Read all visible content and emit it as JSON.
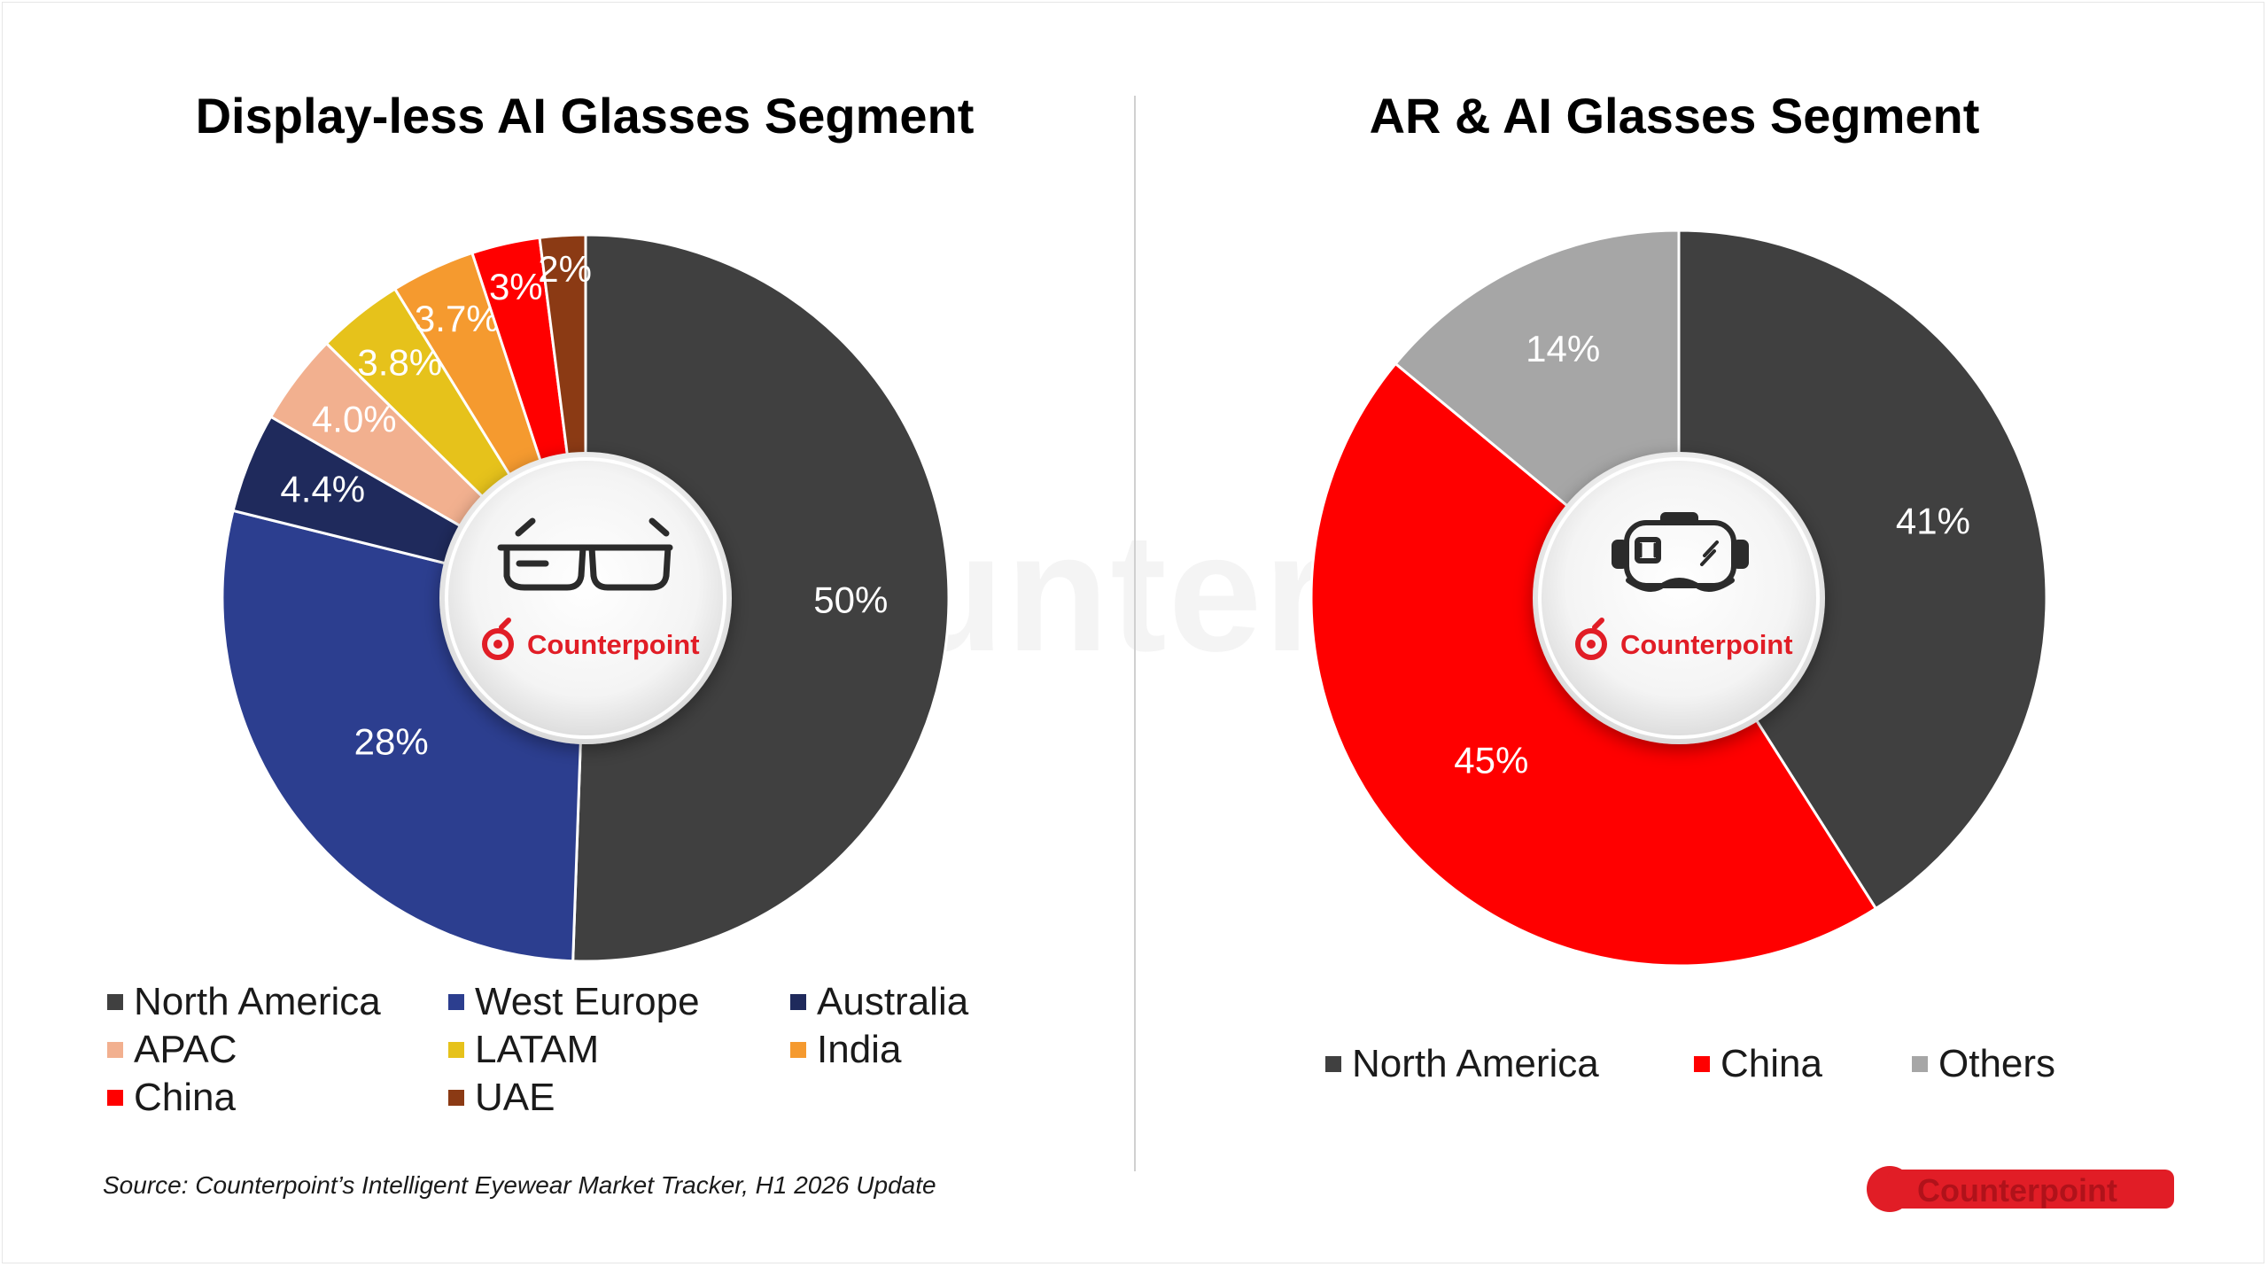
{
  "titles": {
    "left": "Display-less AI Glasses Segment",
    "right": "AR & AI Glasses Segment"
  },
  "center_brand": "Counterpoint",
  "watermark": "Counterpoint",
  "source": "Source: Counterpoint’s Intelligent Eyewear Market Tracker, H1 2026 Update",
  "colors": {
    "north_america": "#404040",
    "west_europe": "#2c3e8f",
    "australia": "#1f2a5c",
    "apac": "#f2b08f",
    "latam": "#e6c21b",
    "india": "#f59a2f",
    "china": "#ff0000",
    "uae": "#8b3a14",
    "others": "#a6a6a6",
    "brand_red": "#e11d26"
  },
  "icons": {
    "left_center": "smart-glasses-icon",
    "right_center": "vr-headset-icon"
  },
  "chart_data": [
    {
      "type": "pie",
      "title": "Display-less AI Glasses Segment",
      "categories": [
        "North America",
        "West Europe",
        "Australia",
        "APAC",
        "LATAM",
        "India",
        "China",
        "UAE"
      ],
      "values": [
        50,
        28,
        4.4,
        4.0,
        3.8,
        3.7,
        3,
        2
      ],
      "labels": [
        "50%",
        "28%",
        "4.4%",
        "4.0%",
        "3.8%",
        "3.7%",
        "3%",
        "2%"
      ],
      "colors": [
        "#404040",
        "#2c3e8f",
        "#1f2a5c",
        "#f2b08f",
        "#e6c21b",
        "#f59a2f",
        "#ff0000",
        "#8b3a14"
      ],
      "legend_position": "bottom"
    },
    {
      "type": "pie",
      "title": "AR & AI Glasses Segment",
      "categories": [
        "North America",
        "China",
        "Others"
      ],
      "values": [
        41,
        45,
        14
      ],
      "labels": [
        "41%",
        "45%",
        "14%"
      ],
      "colors": [
        "#404040",
        "#ff0000",
        "#a6a6a6"
      ],
      "legend_position": "bottom"
    }
  ]
}
